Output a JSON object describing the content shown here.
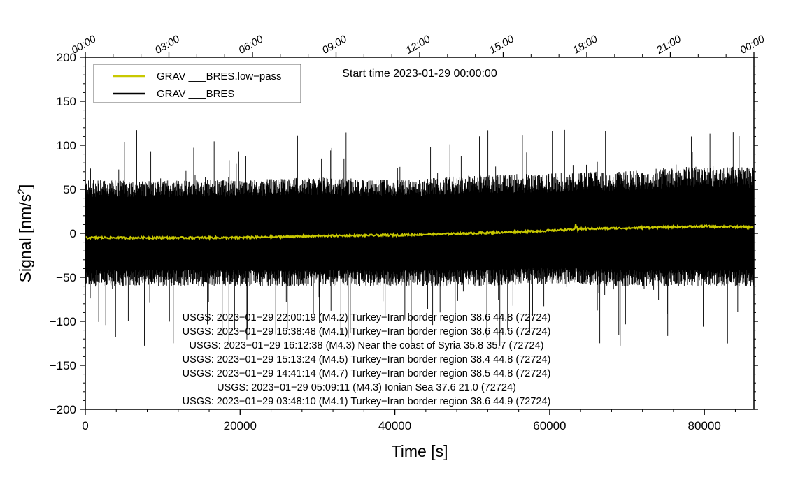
{
  "chart_data": {
    "type": "line",
    "title": "",
    "start_time_label": "Start time 2023-01-29 00:00:00",
    "xlabel": "Time [s]",
    "ylabel_main": "Signal [nm/s",
    "ylabel_sup": "2",
    "ylabel_end": "]",
    "xlim": [
      0,
      86400
    ],
    "ylim": [
      -200,
      200
    ],
    "x_ticks": [
      0,
      20000,
      40000,
      60000,
      80000
    ],
    "x_tick_labels": [
      "0",
      "20000",
      "40000",
      "60000",
      "80000"
    ],
    "y_ticks": [
      -200,
      -150,
      -100,
      -50,
      0,
      50,
      100,
      150,
      200
    ],
    "y_tick_labels": [
      "−200",
      "−150",
      "−100",
      "−50",
      "0",
      "50",
      "100",
      "150",
      "200"
    ],
    "top_ticks_seconds": [
      0,
      10800,
      21600,
      32400,
      43200,
      54000,
      64800,
      75600,
      86400
    ],
    "top_tick_labels": [
      "00:00",
      "03:00",
      "06:00",
      "09:00",
      "12:00",
      "15:00",
      "18:00",
      "21:00",
      "00:00"
    ],
    "legend": [
      {
        "label": "GRAV ___BRES.low−pass",
        "color": "#c8c800"
      },
      {
        "label": "GRAV ___BRES",
        "color": "#000000"
      }
    ],
    "series": [
      {
        "name": "GRAV ___BRES",
        "color": "#000000",
        "envelope_x": [
          0,
          10000,
          20000,
          30000,
          40000,
          50000,
          60000,
          70000,
          80000,
          86400
        ],
        "envelope_upper": [
          55,
          55,
          55,
          58,
          55,
          60,
          62,
          65,
          70,
          68
        ],
        "envelope_lower": [
          -55,
          -55,
          -55,
          -55,
          -55,
          -55,
          -52,
          -55,
          -55,
          -55
        ],
        "spike_max": 120,
        "spike_min": -130
      },
      {
        "name": "GRAV ___BRES.low−pass",
        "color": "#c8c800",
        "x": [
          0,
          10000,
          20000,
          30000,
          40000,
          50000,
          60000,
          63500,
          70000,
          80000,
          86400
        ],
        "y": [
          -5,
          -5,
          -5,
          -3,
          -2,
          0,
          3,
          5,
          6,
          8,
          7
        ]
      }
    ],
    "annotations": [
      "USGS: 2023−01−29 22:00:19 (M4.2) Turkey−Iran border region 38.6 44.8 (72724)",
      "USGS: 2023−01−29 16:38:48 (M4.1) Turkey−Iran border region 38.6 44.6 (72724)",
      "USGS: 2023−01−29 16:12:38 (M4.3) Near the coast of Syria 35.8 35.7 (72724)",
      "USGS: 2023−01−29 15:13:24 (M4.5) Turkey−Iran border region 38.4 44.8 (72724)",
      "USGS: 2023−01−29 14:41:14 (M4.7) Turkey−Iran border region 38.5 44.8 (72724)",
      "USGS: 2023−01−29 05:09:11 (M4.3) Ionian Sea 37.6 21.0 (72724)",
      "USGS: 2023−01−29 03:48:10 (M4.1) Turkey−Iran border region 38.6 44.9 (72724)"
    ]
  }
}
